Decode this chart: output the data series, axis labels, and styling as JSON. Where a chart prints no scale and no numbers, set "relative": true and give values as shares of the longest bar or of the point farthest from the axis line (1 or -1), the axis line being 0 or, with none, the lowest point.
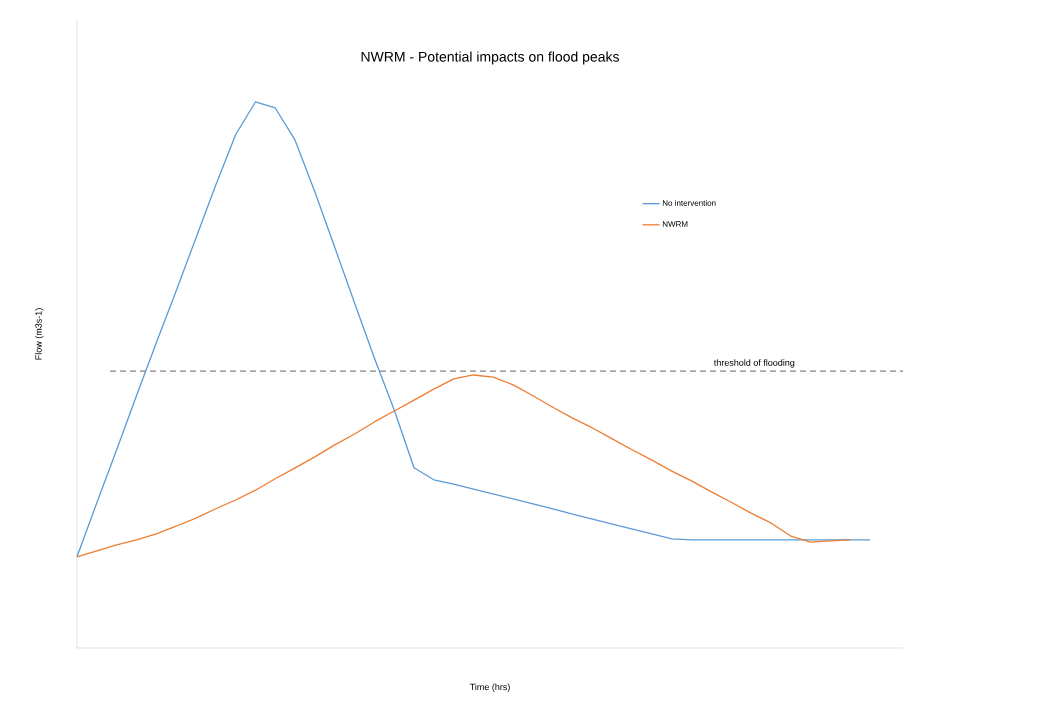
{
  "chart_data": {
    "type": "line",
    "title": "NWRM - Potential impacts on flood peaks",
    "xlabel": "Time (hrs)",
    "ylabel": "Flow (m3s-1)",
    "relative": true,
    "legend": "top right",
    "marker": "none",
    "line_style": "solid",
    "categories": [
      null,
      null,
      null,
      null,
      null,
      null,
      null,
      null,
      null,
      null,
      null,
      null,
      null,
      null,
      null,
      null,
      null,
      null,
      null,
      null,
      null,
      null,
      null,
      null,
      null,
      null,
      null,
      null,
      null,
      null,
      null,
      null,
      null,
      null,
      null,
      null,
      null,
      null,
      null,
      null,
      null
    ],
    "series": [
      {
        "name": "No intervention",
        "color": "#5b9bd5",
        "values": [
          0.167,
          0.266,
          0.363,
          0.462,
          0.559,
          0.654,
          0.751,
          0.848,
          0.94,
          1.0,
          0.989,
          0.93,
          0.835,
          0.734,
          0.632,
          0.531,
          0.436,
          0.33,
          0.308,
          0.3,
          0.291,
          0.282,
          0.273,
          0.264,
          0.255,
          0.245,
          0.236,
          0.227,
          0.218,
          0.209,
          0.2,
          0.198,
          0.198,
          0.198,
          0.198,
          0.198,
          0.198,
          0.198,
          0.198,
          0.198,
          0.198
        ]
      },
      {
        "name": "NWRM",
        "color": "#ed7d31",
        "values": [
          0.167,
          0.178,
          0.189,
          0.198,
          0.209,
          0.223,
          0.238,
          0.255,
          0.271,
          0.289,
          0.31,
          0.33,
          0.35,
          0.372,
          0.392,
          0.414,
          0.434,
          0.454,
          0.474,
          0.493,
          0.5,
          0.496,
          0.482,
          0.462,
          0.441,
          0.421,
          0.403,
          0.383,
          0.363,
          0.344,
          0.324,
          0.306,
          0.286,
          0.267,
          0.247,
          0.229,
          0.205,
          0.194,
          0.196,
          0.198,
          null
        ]
      }
    ],
    "ref_lines": [
      {
        "axis": "y",
        "value": 0.507,
        "label": "threshold of flooding",
        "color": "#808080",
        "line_style": "dashed"
      }
    ]
  }
}
